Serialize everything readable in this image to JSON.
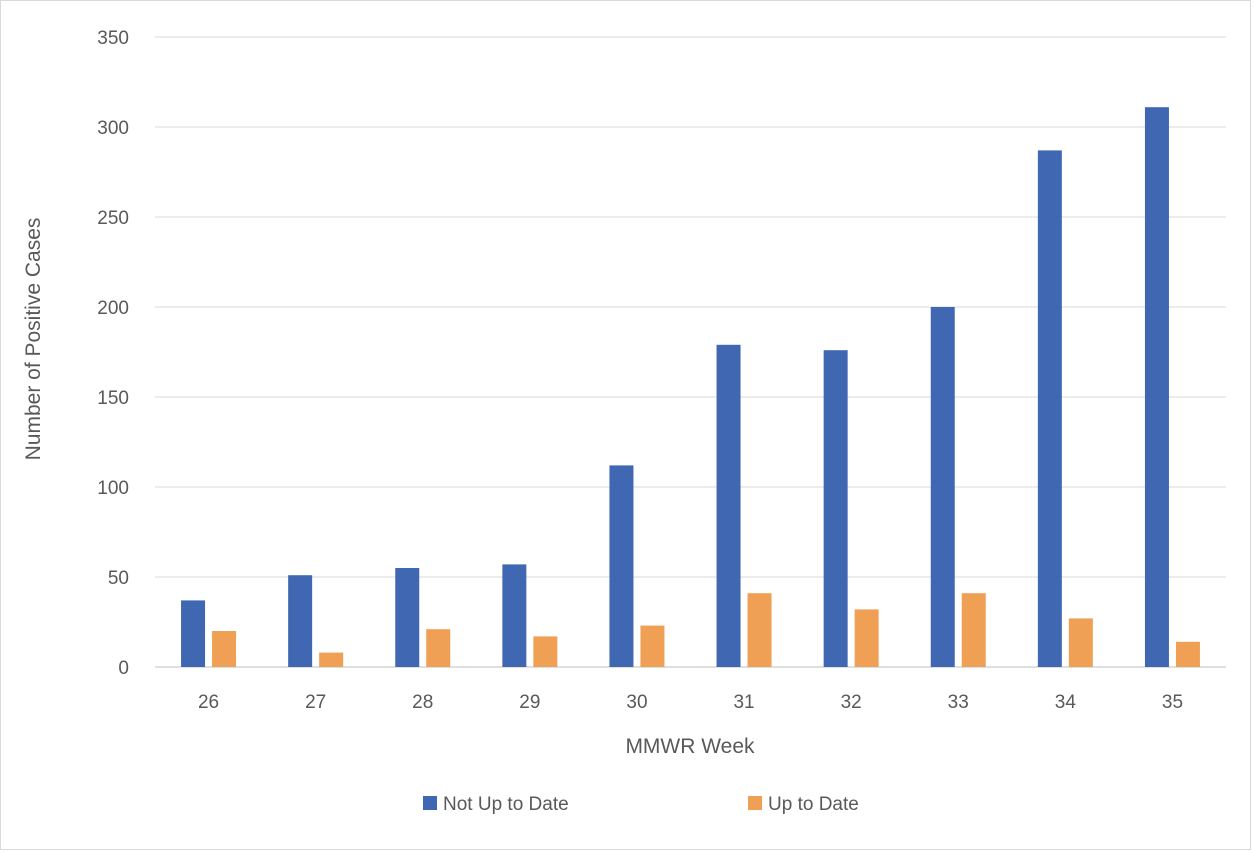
{
  "chart_data": {
    "type": "bar",
    "title": "",
    "xlabel": "MMWR Week",
    "ylabel": "Number of Positive Cases",
    "categories": [
      "26",
      "27",
      "28",
      "29",
      "30",
      "31",
      "32",
      "33",
      "34",
      "35"
    ],
    "series": [
      {
        "name": "Not Up to Date",
        "color": "#4068b2",
        "values": [
          37,
          51,
          55,
          57,
          112,
          179,
          176,
          200,
          287,
          311
        ]
      },
      {
        "name": "Up to Date",
        "color": "#f0a054",
        "values": [
          20,
          8,
          21,
          17,
          23,
          41,
          32,
          41,
          27,
          14
        ]
      }
    ],
    "ylim": [
      0,
      350
    ],
    "yticks": [
      "0",
      "50",
      "100",
      "150",
      "200",
      "250",
      "300",
      "350"
    ],
    "grid": true,
    "legend_position": "bottom"
  }
}
